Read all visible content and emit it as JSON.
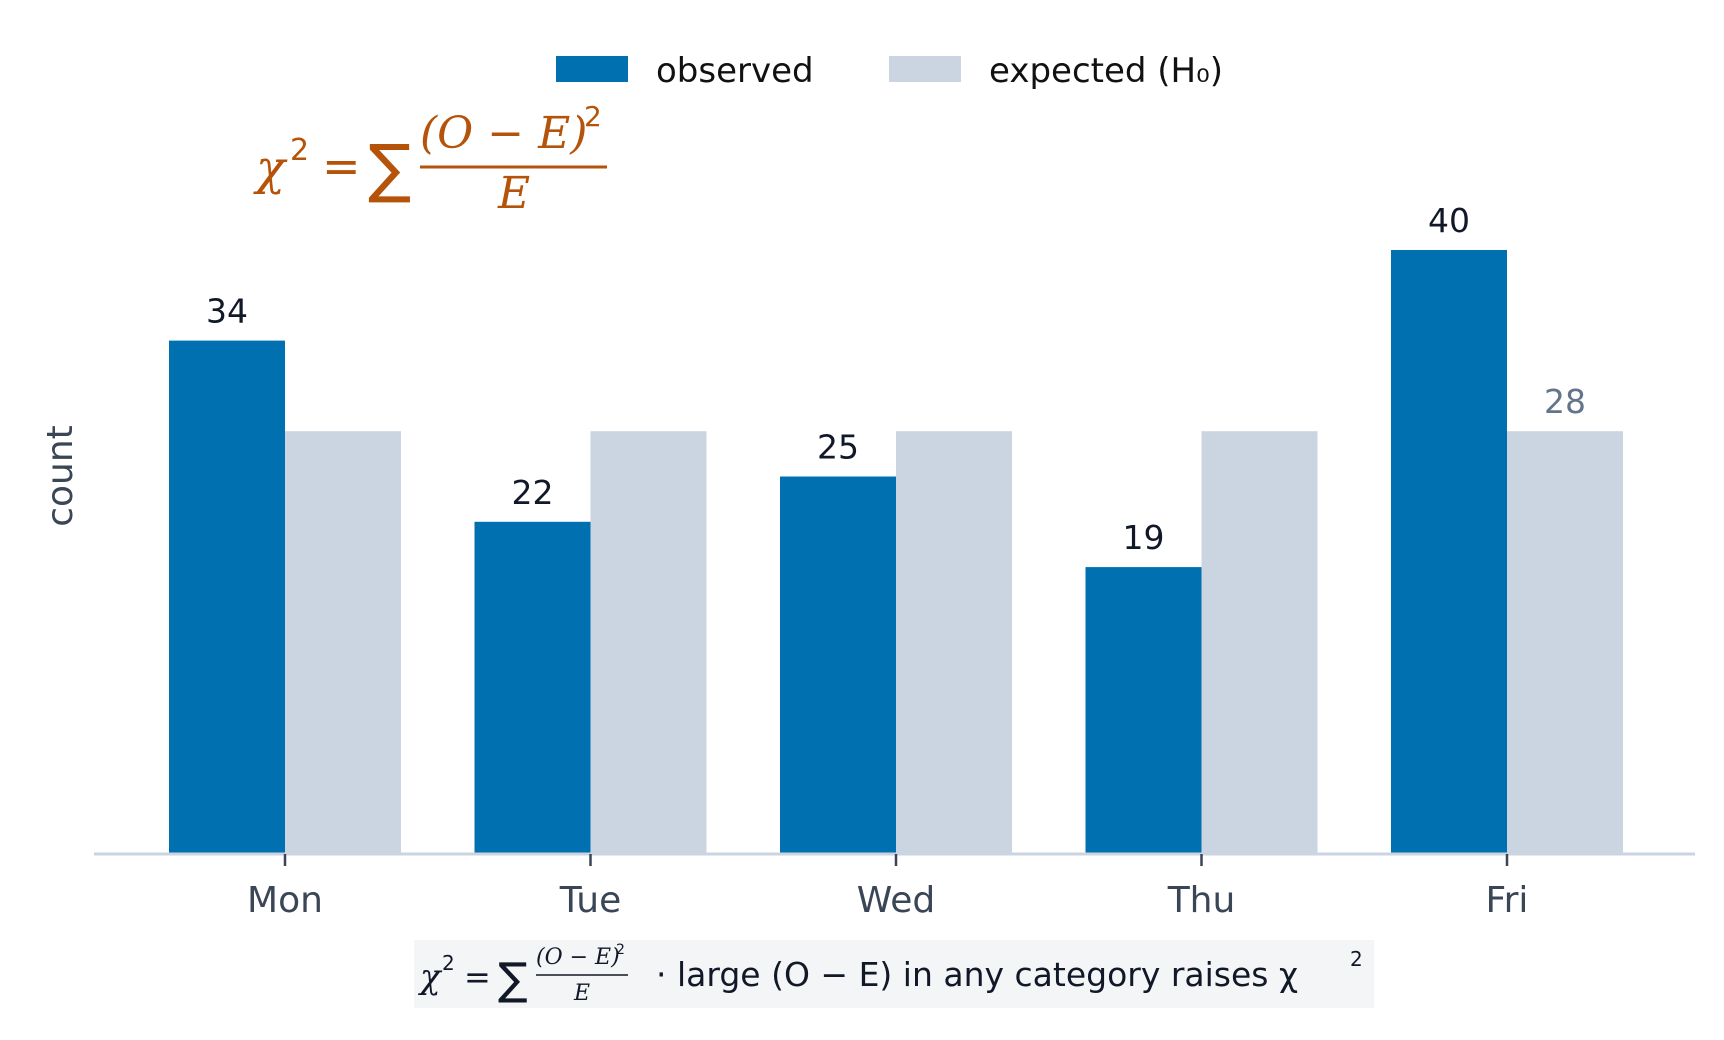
{
  "chart_data": {
    "type": "bar",
    "categories": [
      "Mon",
      "Tue",
      "Wed",
      "Thu",
      "Fri"
    ],
    "series": [
      {
        "name": "observed",
        "values": [
          34,
          22,
          25,
          19,
          40
        ],
        "color": "#0070b0"
      },
      {
        "name": "expected (H₀)",
        "values": [
          28,
          28,
          28,
          28,
          28
        ],
        "color": "#cbd5e1"
      }
    ],
    "ylabel": "count",
    "ylim": [
      0,
      42
    ],
    "legend_position": "top-center",
    "grid": false,
    "data_labels": {
      "observed": [
        "34",
        "22",
        "25",
        "19",
        "40"
      ],
      "expected_last": "28"
    },
    "annotation": {
      "lhs": "χ",
      "sup": "2",
      "eq": "=",
      "sum": "∑",
      "numerator": "(O − E)",
      "numerator_sup": "2",
      "denominator": "E"
    },
    "footnote": {
      "text": "·  large (O − E) in any category raises χ",
      "sup": "2"
    }
  }
}
